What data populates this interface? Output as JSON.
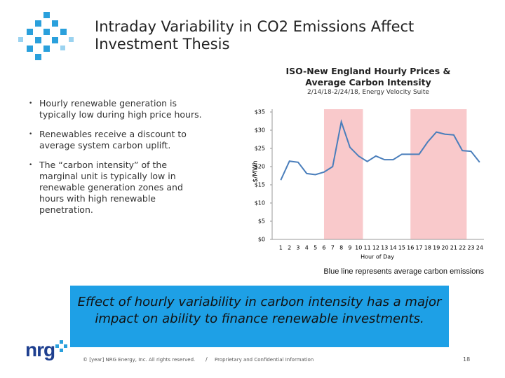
{
  "title": "Intraday Variability in CO2 Emissions Affect Investment Thesis",
  "bullets": [
    "Hourly renewable generation is typically low during high price hours.",
    "Renewables receive a discount to average system carbon uplift.",
    "The “carbon intensity” of the marginal unit is typically low in renewable generation zones and hours with high renewable penetration."
  ],
  "chart_data": {
    "type": "line",
    "title": "ISO-New England Hourly Prices & Average Carbon Intensity",
    "subtitle": "2/14/18-2/24/18, Energy Velocity Suite",
    "x_label": "Hour of Day",
    "y_label": "$/MWh",
    "x": [
      1,
      2,
      3,
      4,
      5,
      6,
      7,
      8,
      9,
      10,
      11,
      12,
      13,
      14,
      15,
      16,
      17,
      18,
      19,
      20,
      21,
      22,
      23,
      24
    ],
    "series": [
      {
        "name": "Average carbon emissions",
        "color": "#4a7ebb",
        "values": [
          16.3,
          21.5,
          21.2,
          18.1,
          17.8,
          18.5,
          20.0,
          32.3,
          25.3,
          22.9,
          21.4,
          22.9,
          21.9,
          21.9,
          23.4,
          23.4,
          23.4,
          26.8,
          29.5,
          28.9,
          28.7,
          24.4,
          24.2,
          21.2
        ]
      }
    ],
    "highlight_ranges": [
      [
        6,
        10.5
      ],
      [
        16,
        22.5
      ]
    ],
    "highlight_color": "#f9c9cb",
    "xlim": [
      0,
      24.5
    ],
    "xticks": [
      1,
      2,
      3,
      4,
      5,
      6,
      7,
      8,
      9,
      10,
      11,
      12,
      13,
      14,
      15,
      16,
      17,
      18,
      19,
      20,
      21,
      22,
      23,
      24
    ],
    "ylim": [
      0,
      35
    ],
    "yticks": [
      {
        "value": 0,
        "label": "$0"
      },
      {
        "value": 5,
        "label": "$5"
      },
      {
        "value": 10,
        "label": "$10"
      },
      {
        "value": 15,
        "label": "$15"
      },
      {
        "value": 20,
        "label": "$20"
      },
      {
        "value": 25,
        "label": "$25"
      },
      {
        "value": 30,
        "label": "$30"
      },
      {
        "value": 35,
        "label": "$35"
      }
    ],
    "note": "Blue line represents average carbon emissions"
  },
  "callout": "Effect of hourly variability in carbon intensity has a major impact on ability to finance renewable investments.",
  "footer": {
    "copyright": "© [year] NRG Energy, Inc. All rights reserved.",
    "separator": "/",
    "confidential": "Proprietary and Confidential Information",
    "page": "18"
  },
  "logo": "nrg"
}
